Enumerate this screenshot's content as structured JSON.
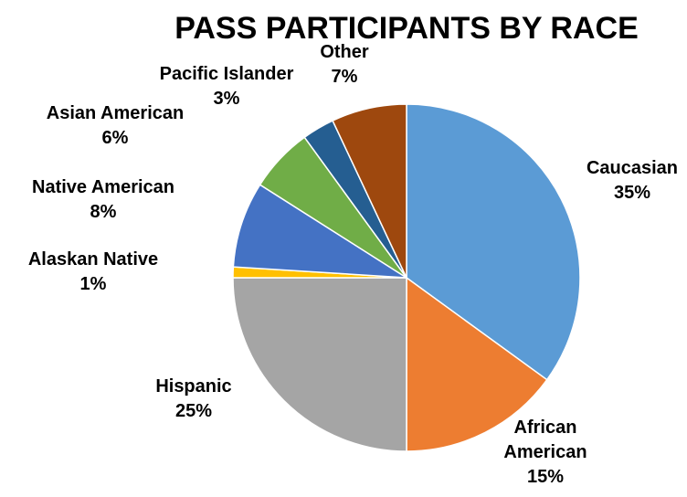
{
  "chart_data": {
    "type": "pie",
    "title": "PASS PARTICIPANTS BY RACE",
    "start_angle_deg": 0,
    "direction": "clockwise",
    "slices": [
      {
        "name": "Caucasian",
        "label_lines": [
          "Caucasian"
        ],
        "value": 35,
        "display": "35%",
        "color": "#5B9BD5"
      },
      {
        "name": "African American",
        "label_lines": [
          "African",
          "American"
        ],
        "value": 15,
        "display": "15%",
        "color": "#ED7D31"
      },
      {
        "name": "Hispanic",
        "label_lines": [
          "Hispanic"
        ],
        "value": 25,
        "display": "25%",
        "color": "#A5A5A5"
      },
      {
        "name": "Alaskan Native",
        "label_lines": [
          "Alaskan Native"
        ],
        "value": 1,
        "display": "1%",
        "color": "#FFC000"
      },
      {
        "name": "Native American",
        "label_lines": [
          "Native American"
        ],
        "value": 8,
        "display": "8%",
        "color": "#4472C4"
      },
      {
        "name": "Asian American",
        "label_lines": [
          "Asian American"
        ],
        "value": 6,
        "display": "6%",
        "color": "#70AD47"
      },
      {
        "name": "Pacific Islander",
        "label_lines": [
          "Pacific Islander"
        ],
        "value": 3,
        "display": "3%",
        "color": "#255E91"
      },
      {
        "name": "Other",
        "label_lines": [
          "Other"
        ],
        "value": 7,
        "display": "7%",
        "color": "#9E480E"
      }
    ]
  }
}
